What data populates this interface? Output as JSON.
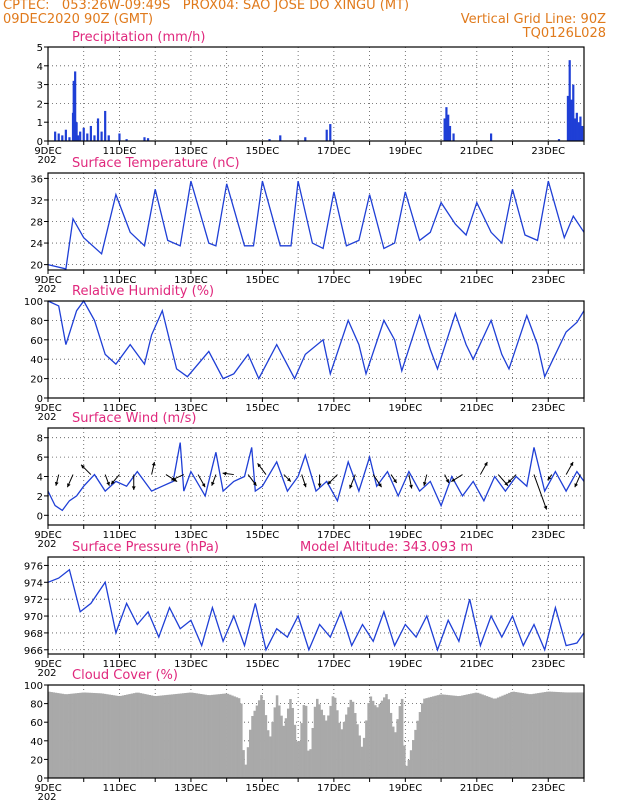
{
  "header": {
    "line1_left": "CPTEC:   053:26W-09:49S   PROX04: SAO JOSE DO XINGU (MT)",
    "line2_left": "09DEC2020 90Z (GMT)",
    "line2_right": "Vertical Grid Line: 90Z",
    "line3_right": "TQ0126L028"
  },
  "x_axis": {
    "start": "9DEC",
    "end": "24DEC",
    "tick_labels": [
      "9DEC",
      "11DEC",
      "13DEC",
      "15DEC",
      "17DEC",
      "19DEC",
      "21DEC",
      "23DEC"
    ],
    "tick_days": [
      9,
      11,
      13,
      15,
      17,
      19,
      21,
      23
    ],
    "stub_label": "202"
  },
  "colors": {
    "line": "#1f3fd6",
    "title": "#e0287d",
    "header": "#e07a1c",
    "cloud": "#a9a9a9",
    "arrow": "#000000"
  },
  "chart_data": [
    {
      "type": "bar",
      "title": "Precipitation (mm/h)",
      "ylim": [
        0,
        5
      ],
      "yticks": [
        0,
        1,
        2,
        3,
        4,
        5
      ],
      "x": [
        9.2,
        9.3,
        9.4,
        9.5,
        9.6,
        9.7,
        9.72,
        9.76,
        9.8,
        9.84,
        9.9,
        10.0,
        10.1,
        10.2,
        10.3,
        10.4,
        10.5,
        10.6,
        10.7,
        11.0,
        11.2,
        11.7,
        11.8,
        15.2,
        15.5,
        16.2,
        16.8,
        16.9,
        20.1,
        20.15,
        20.2,
        20.25,
        20.35,
        21.4,
        23.3,
        23.55,
        23.6,
        23.65,
        23.7,
        23.75,
        23.8,
        23.85,
        23.9,
        23.95
      ],
      "values": [
        0.5,
        0.4,
        0.3,
        0.6,
        0.2,
        1.5,
        3.2,
        3.7,
        1.0,
        0.3,
        0.5,
        0.7,
        0.4,
        0.8,
        0.3,
        1.2,
        0.5,
        1.6,
        0.3,
        0.4,
        0.1,
        0.2,
        0.15,
        0.1,
        0.3,
        0.2,
        0.6,
        0.9,
        1.2,
        1.8,
        1.4,
        0.8,
        0.4,
        0.4,
        0.1,
        2.4,
        4.3,
        2.2,
        3.0,
        1.2,
        1.5,
        1.0,
        1.3,
        0.8
      ]
    },
    {
      "type": "line",
      "title": "Surface Temperature (nC)",
      "ylim": [
        19,
        37
      ],
      "yticks": [
        20,
        24,
        28,
        32,
        36
      ],
      "x": [
        9.0,
        9.5,
        9.7,
        10.0,
        10.5,
        10.9,
        11.3,
        11.7,
        12.0,
        12.35,
        12.7,
        13.0,
        13.5,
        13.7,
        14.0,
        14.5,
        14.75,
        15.0,
        15.5,
        15.8,
        16.0,
        16.4,
        16.7,
        17.0,
        17.35,
        17.7,
        18.0,
        18.4,
        18.7,
        19.0,
        19.4,
        19.7,
        20.0,
        20.4,
        20.7,
        21.0,
        21.4,
        21.7,
        22.0,
        22.35,
        22.7,
        23.0,
        23.45,
        23.7,
        24.0
      ],
      "values": [
        20.0,
        19.2,
        28.5,
        25.0,
        22.0,
        33.0,
        26.0,
        23.5,
        34.0,
        24.5,
        23.5,
        35.5,
        24.0,
        23.5,
        35.0,
        23.5,
        23.5,
        35.5,
        23.5,
        23.5,
        35.5,
        24.0,
        23.0,
        33.5,
        23.5,
        24.5,
        33.0,
        23.0,
        24.0,
        33.5,
        24.5,
        26.0,
        31.5,
        27.5,
        25.5,
        31.5,
        26.0,
        24.0,
        34.0,
        25.5,
        24.5,
        35.5,
        25.0,
        29.0,
        26.0
      ]
    },
    {
      "type": "line",
      "title": "Relative Humidity (%)",
      "ylim": [
        0,
        100
      ],
      "yticks": [
        0,
        20,
        40,
        60,
        80,
        100
      ],
      "x": [
        9.0,
        9.3,
        9.5,
        9.8,
        10.0,
        10.3,
        10.6,
        10.9,
        11.3,
        11.7,
        11.9,
        12.2,
        12.6,
        12.9,
        13.5,
        13.9,
        14.2,
        14.6,
        14.9,
        15.4,
        15.9,
        16.2,
        16.7,
        16.9,
        17.4,
        17.7,
        17.9,
        18.4,
        18.7,
        18.9,
        19.4,
        19.7,
        19.9,
        20.4,
        20.7,
        20.9,
        21.4,
        21.7,
        21.9,
        22.4,
        22.7,
        22.9,
        23.5,
        23.8,
        24.0
      ],
      "values": [
        100,
        95,
        55,
        90,
        100,
        80,
        45,
        35,
        55,
        35,
        65,
        90,
        30,
        22,
        48,
        20,
        25,
        45,
        20,
        55,
        20,
        45,
        60,
        25,
        80,
        55,
        25,
        80,
        60,
        28,
        85,
        50,
        30,
        87,
        55,
        40,
        80,
        45,
        30,
        85,
        55,
        22,
        68,
        78,
        90
      ]
    },
    {
      "type": "line",
      "title": "Surface Wind (m/s)",
      "ylim": [
        -1,
        9
      ],
      "yticks": [
        0,
        2,
        4,
        6,
        8
      ],
      "x": [
        9.0,
        9.2,
        9.4,
        9.6,
        9.8,
        10.0,
        10.3,
        10.6,
        10.9,
        11.2,
        11.5,
        11.9,
        12.2,
        12.5,
        12.7,
        12.8,
        13.0,
        13.4,
        13.7,
        13.9,
        14.2,
        14.5,
        14.7,
        14.8,
        15.0,
        15.4,
        15.7,
        16.0,
        16.2,
        16.5,
        16.8,
        17.1,
        17.4,
        17.7,
        18.0,
        18.2,
        18.5,
        18.8,
        19.1,
        19.4,
        19.7,
        20.0,
        20.3,
        20.6,
        20.9,
        21.2,
        21.5,
        21.8,
        22.1,
        22.4,
        22.6,
        22.9,
        23.2,
        23.5,
        23.8,
        24.0
      ],
      "values": [
        2.5,
        1.0,
        0.5,
        1.5,
        2.0,
        3.0,
        4.2,
        2.5,
        3.5,
        3.0,
        4.5,
        2.5,
        3.0,
        3.5,
        7.5,
        2.5,
        4.5,
        2.0,
        6.5,
        2.5,
        3.5,
        4.0,
        7.0,
        2.5,
        3.0,
        5.5,
        2.5,
        4.0,
        6.2,
        2.5,
        3.5,
        1.5,
        5.5,
        2.5,
        6.0,
        3.0,
        4.5,
        2.0,
        4.5,
        2.5,
        3.5,
        1.0,
        4.0,
        2.0,
        3.5,
        1.5,
        4.0,
        2.5,
        4.0,
        3.0,
        7.0,
        2.5,
        4.5,
        2.5,
        4.5,
        3.5
      ],
      "arrows_x": [
        9.3,
        9.7,
        10.2,
        10.6,
        11.0,
        11.4,
        11.9,
        12.3,
        12.8,
        13.2,
        13.7,
        14.2,
        14.6,
        15.1,
        15.6,
        16.1,
        16.6,
        17.1,
        17.6,
        18.1,
        18.6,
        19.1,
        19.6,
        20.1,
        20.6,
        21.1,
        21.6,
        22.1,
        22.6,
        23.1,
        23.5,
        23.9
      ],
      "arrows_u": [
        -0.2,
        -0.4,
        -0.7,
        0.3,
        -0.6,
        0.0,
        0.2,
        0.8,
        -0.9,
        0.5,
        -0.3,
        -0.8,
        0.6,
        -0.6,
        0.5,
        0.3,
        0.0,
        -0.7,
        -0.4,
        0.6,
        0.4,
        0.2,
        -0.2,
        0.3,
        -0.8,
        0.5,
        0.7,
        -0.6,
        0.9,
        -0.3,
        0.5,
        -0.4
      ],
      "arrows_v": [
        -0.8,
        -0.9,
        0.7,
        -0.8,
        -0.7,
        -1.1,
        0.9,
        -0.5,
        -0.4,
        -0.9,
        -0.8,
        0.1,
        -0.8,
        0.8,
        -0.5,
        -0.9,
        -0.9,
        -0.7,
        -1.0,
        -0.9,
        -0.6,
        -1.0,
        -0.8,
        -0.6,
        -0.5,
        0.9,
        -0.8,
        -0.6,
        -2.5,
        -0.4,
        0.9,
        -0.9
      ]
    },
    {
      "type": "line",
      "title": "Surface Pressure (hPa)",
      "subtitle": "Model Altitude: 343.093 m",
      "ylim": [
        965.5,
        977
      ],
      "yticks": [
        966,
        968,
        970,
        972,
        974,
        976
      ],
      "x": [
        9.0,
        9.3,
        9.6,
        9.9,
        10.2,
        10.6,
        10.9,
        11.2,
        11.5,
        11.8,
        12.1,
        12.4,
        12.7,
        13.0,
        13.3,
        13.6,
        13.9,
        14.2,
        14.5,
        14.8,
        15.1,
        15.4,
        15.7,
        16.0,
        16.3,
        16.6,
        16.9,
        17.2,
        17.5,
        17.8,
        18.1,
        18.4,
        18.7,
        19.0,
        19.3,
        19.6,
        19.9,
        20.2,
        20.5,
        20.8,
        21.1,
        21.4,
        21.7,
        22.0,
        22.3,
        22.6,
        22.9,
        23.2,
        23.5,
        23.8,
        24.0
      ],
      "values": [
        974.0,
        974.5,
        975.5,
        970.5,
        971.5,
        974.0,
        968.0,
        971.5,
        969.0,
        970.5,
        967.5,
        971.0,
        968.5,
        969.5,
        966.5,
        971.0,
        967.0,
        970.0,
        966.5,
        971.5,
        966.0,
        968.5,
        967.5,
        970.0,
        966.0,
        969.0,
        967.5,
        970.5,
        966.5,
        969.0,
        967.0,
        970.5,
        966.5,
        969.0,
        967.5,
        970.0,
        966.0,
        969.5,
        967.0,
        972.0,
        966.5,
        970.0,
        967.5,
        970.0,
        966.5,
        969.0,
        966.0,
        971.0,
        966.5,
        966.8,
        968.0
      ]
    },
    {
      "type": "area",
      "title": "Cloud Cover (%)",
      "ylim": [
        0,
        100
      ],
      "yticks": [
        0,
        20,
        40,
        60,
        80,
        100
      ],
      "x": [
        9.0,
        9.5,
        10.0,
        10.5,
        11.0,
        11.5,
        12.0,
        12.5,
        13.0,
        13.5,
        14.0,
        14.4,
        14.5,
        14.7,
        15.0,
        15.2,
        15.4,
        15.6,
        15.8,
        16.0,
        16.2,
        16.3,
        16.5,
        16.8,
        17.0,
        17.2,
        17.5,
        17.8,
        18.0,
        18.2,
        18.5,
        18.7,
        18.9,
        19.0,
        19.1,
        19.3,
        19.5,
        20.0,
        20.5,
        21.0,
        21.5,
        22.0,
        22.5,
        23.0,
        23.5,
        24.0
      ],
      "values": [
        93,
        90,
        92,
        91,
        88,
        92,
        88,
        90,
        92,
        89,
        91,
        85,
        5,
        65,
        92,
        40,
        90,
        55,
        88,
        30,
        92,
        15,
        88,
        60,
        93,
        50,
        88,
        30,
        90,
        75,
        92,
        45,
        90,
        10,
        20,
        55,
        85,
        90,
        88,
        92,
        85,
        93,
        90,
        93,
        92,
        92
      ]
    }
  ]
}
